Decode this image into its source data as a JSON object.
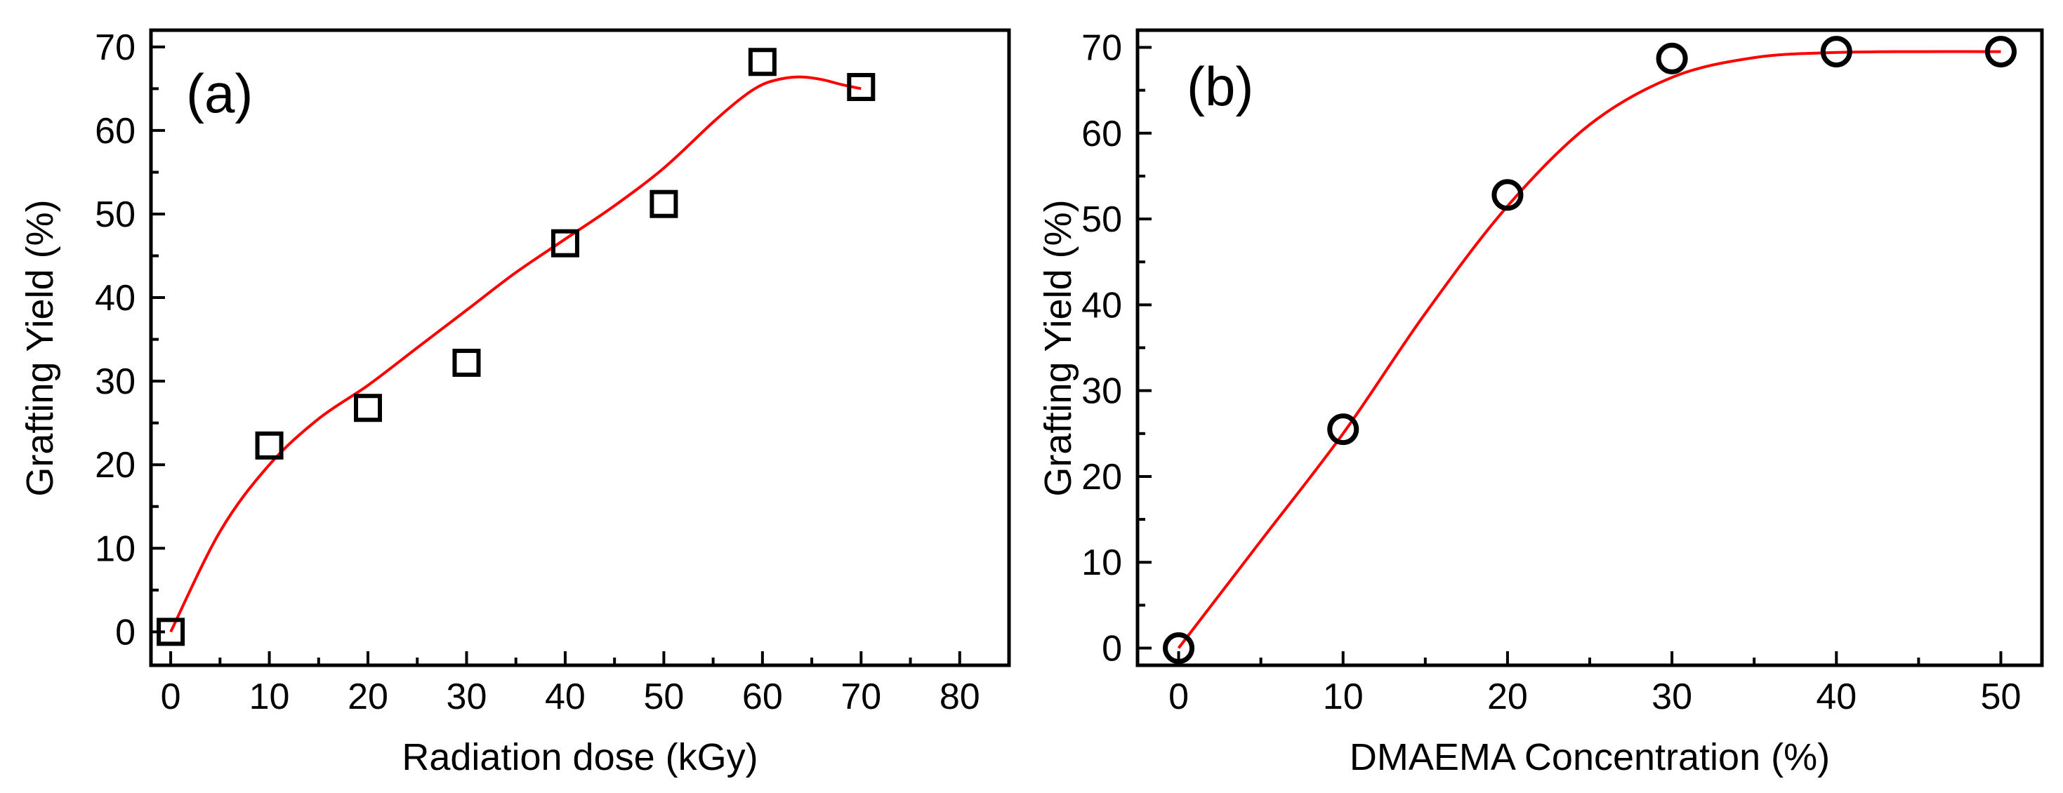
{
  "chart_data": [
    {
      "id": "a",
      "type": "scatter",
      "panel_label": "(a)",
      "xlabel": "Radiation dose (kGy)",
      "ylabel": "Grafting Yield (%)",
      "xlim": [
        -2,
        85
      ],
      "ylim": [
        -4,
        72
      ],
      "xticks": [
        0,
        10,
        20,
        30,
        40,
        50,
        60,
        70,
        80
      ],
      "yticks": [
        0,
        10,
        20,
        30,
        40,
        50,
        60,
        70
      ],
      "marker": "square",
      "series": [
        {
          "name": "data",
          "x": [
            0,
            10,
            20,
            30,
            40,
            50,
            60,
            70
          ],
          "y": [
            0,
            22.3,
            26.8,
            32.2,
            46.5,
            51.2,
            68.2,
            65.2
          ]
        }
      ],
      "fit": {
        "name": "fit",
        "x": [
          0,
          5,
          10,
          15,
          20,
          25,
          30,
          35,
          40,
          45,
          50,
          55,
          58,
          60,
          62,
          64,
          66,
          68,
          70
        ],
        "y": [
          0,
          12,
          20,
          25.5,
          29.5,
          34,
          38.5,
          43,
          47,
          51,
          55.5,
          61,
          64,
          65.5,
          66.2,
          66.4,
          66.1,
          65.5,
          65
        ]
      },
      "colors": {
        "marker": "#000000",
        "fit": "#ff0000",
        "axes": "#000000"
      }
    },
    {
      "id": "b",
      "type": "scatter",
      "panel_label": "(b)",
      "xlabel": "DMAEMA Concentration (%)",
      "ylabel": "Grafting Yield (%)",
      "xlim": [
        -2.5,
        52.5
      ],
      "ylim": [
        -2,
        72
      ],
      "xticks": [
        0,
        10,
        20,
        30,
        40,
        50
      ],
      "yticks": [
        0,
        10,
        20,
        30,
        40,
        50,
        60,
        70
      ],
      "marker": "circle",
      "series": [
        {
          "name": "data",
          "x": [
            0,
            10,
            20,
            30,
            40,
            50
          ],
          "y": [
            0,
            25.5,
            52.8,
            68.7,
            69.5,
            69.5
          ]
        }
      ],
      "fit": {
        "name": "fit",
        "x": [
          0,
          5,
          10,
          15,
          20,
          25,
          30,
          35,
          40,
          45,
          50
        ],
        "y": [
          0,
          12.5,
          25,
          39,
          51.5,
          61,
          66.5,
          68.8,
          69.4,
          69.5,
          69.5
        ]
      },
      "colors": {
        "marker": "#000000",
        "fit": "#ff0000",
        "axes": "#000000"
      }
    }
  ]
}
